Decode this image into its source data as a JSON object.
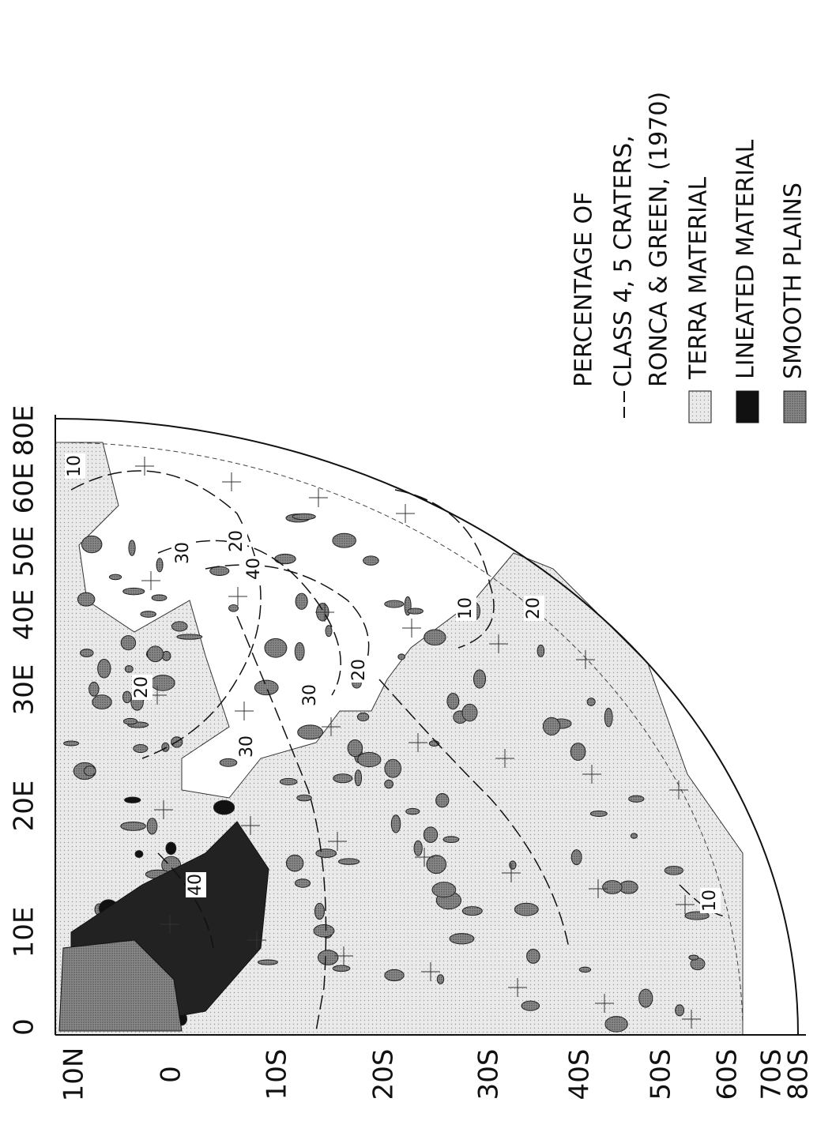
{
  "latitude_labels": [
    "10N",
    "0",
    "10S",
    "20S",
    "30S",
    "40S",
    "50S",
    "60S",
    "70S",
    "80S"
  ],
  "longitude_labels": [
    "0",
    "10E",
    "20E",
    "30E",
    "40E",
    "50E",
    "60E",
    "80E"
  ],
  "contour_labels": [
    "10",
    "20",
    "30",
    "40",
    "20",
    "30",
    "10",
    "20",
    "30",
    "40",
    "20",
    "10"
  ],
  "legend": {
    "title": [
      "PERCENTAGE OF",
      "CLASS 4, 5 CRATERS,",
      "RONCA & GREEN, (1970)"
    ],
    "items": [
      "TERRA MATERIAL",
      "LINEATED MATERIAL",
      "SMOOTH PLAINS"
    ]
  }
}
